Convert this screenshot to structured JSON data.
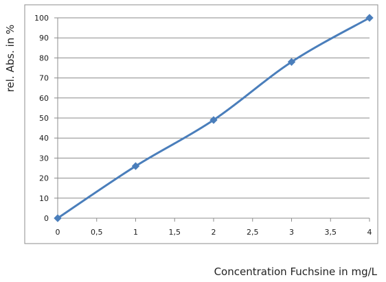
{
  "chart_data": {
    "type": "line",
    "title": "",
    "xlabel": "Concentration Fuchsine in mg/L",
    "ylabel": "rel. Abs. in %",
    "x_ticks": [
      "0",
      "0,5",
      "1",
      "1,5",
      "2",
      "2,5",
      "3",
      "3,5",
      "4"
    ],
    "y_ticks": [
      "0",
      "10",
      "20",
      "30",
      "40",
      "50",
      "60",
      "70",
      "80",
      "90",
      "100"
    ],
    "xlim": [
      0,
      4
    ],
    "ylim": [
      0,
      100
    ],
    "grid": "horizontal",
    "legend": "none",
    "series": [
      {
        "x": [
          0,
          1,
          2,
          3,
          4
        ],
        "y": [
          0,
          26,
          49,
          78,
          100
        ],
        "color": "#4a7ebb",
        "marker": "diamond"
      }
    ]
  }
}
